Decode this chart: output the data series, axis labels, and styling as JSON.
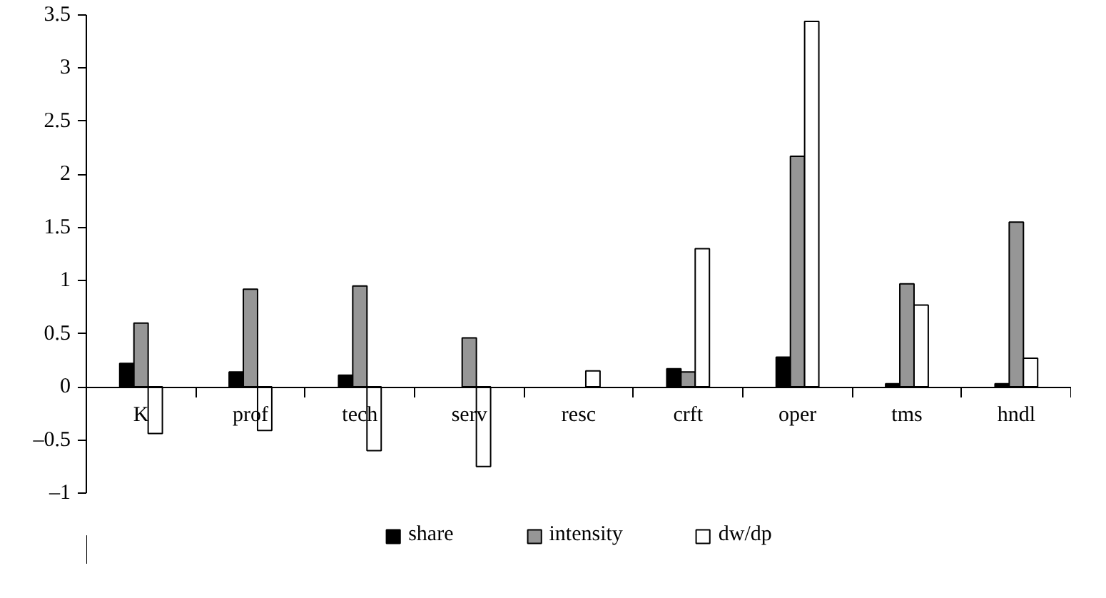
{
  "chart_data": {
    "type": "bar",
    "categories": [
      "K",
      "prof",
      "tech",
      "serv",
      "resc",
      "crft",
      "oper",
      "tms",
      "hndl"
    ],
    "series": [
      {
        "name": "share",
        "color": "#000000",
        "values": [
          0.22,
          0.14,
          0.11,
          null,
          null,
          0.17,
          0.28,
          0.03,
          0.03
        ]
      },
      {
        "name": "intensity",
        "color": "#969696",
        "values": [
          0.6,
          0.92,
          0.95,
          0.46,
          null,
          0.14,
          2.17,
          0.97,
          1.55
        ]
      },
      {
        "name": "dw/dp",
        "color": "#ffffff",
        "values": [
          -0.44,
          -0.41,
          -0.6,
          -0.75,
          0.15,
          1.3,
          3.44,
          0.77,
          0.27
        ]
      }
    ],
    "ylim": [
      -1,
      3.5
    ],
    "yticks": [
      {
        "value": -1,
        "label": "–1"
      },
      {
        "value": -0.5,
        "label": "–0.5"
      },
      0,
      0.5,
      1,
      1.5,
      2,
      2.5,
      3,
      3.5
    ],
    "grid": false,
    "legend": "bottom"
  }
}
